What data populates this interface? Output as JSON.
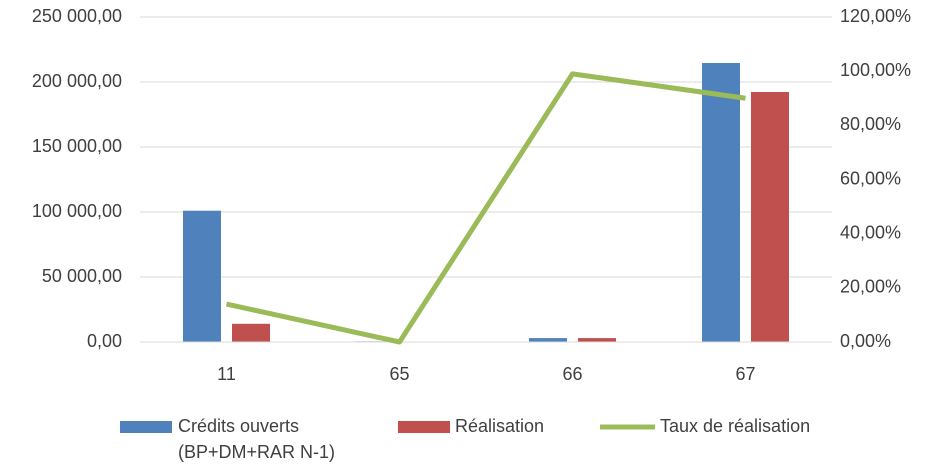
{
  "chart_data": {
    "type": "bar",
    "categories": [
      "11",
      "65",
      "66",
      "67"
    ],
    "series": [
      {
        "name": "Crédits ouverts (BP+DM+RAR N-1)",
        "color": "#4f81bd",
        "type": "bar",
        "values": [
          101000,
          500,
          3000,
          214600
        ]
      },
      {
        "name": "Réalisation",
        "color": "#c0504d",
        "type": "bar",
        "values": [
          14000,
          0,
          3000,
          192300
        ]
      },
      {
        "name": "Taux de réalisation",
        "color": "#9bbb59",
        "type": "line",
        "axis": "y2",
        "values": [
          14,
          0,
          99,
          90
        ]
      }
    ],
    "ylim": [
      0,
      250000
    ],
    "yticks": [
      {
        "value": 0,
        "label": "0,00"
      },
      {
        "value": 50000,
        "label": "50 000,00"
      },
      {
        "value": 100000,
        "label": "100 000,00"
      },
      {
        "value": 150000,
        "label": "150 000,00"
      },
      {
        "value": 200000,
        "label": "200 000,00"
      },
      {
        "value": 250000,
        "label": "250 000,00"
      }
    ],
    "y2lim": [
      0,
      120
    ],
    "y2ticks": [
      {
        "value": 0,
        "label": "0,00%"
      },
      {
        "value": 20,
        "label": "20,00%"
      },
      {
        "value": 40,
        "label": "40,00%"
      },
      {
        "value": 60,
        "label": "60,00%"
      },
      {
        "value": 80,
        "label": "80,00%"
      },
      {
        "value": 100,
        "label": "100,00%"
      },
      {
        "value": 120,
        "label": "120,00%"
      }
    ],
    "grid": true,
    "legend": "bottom"
  }
}
